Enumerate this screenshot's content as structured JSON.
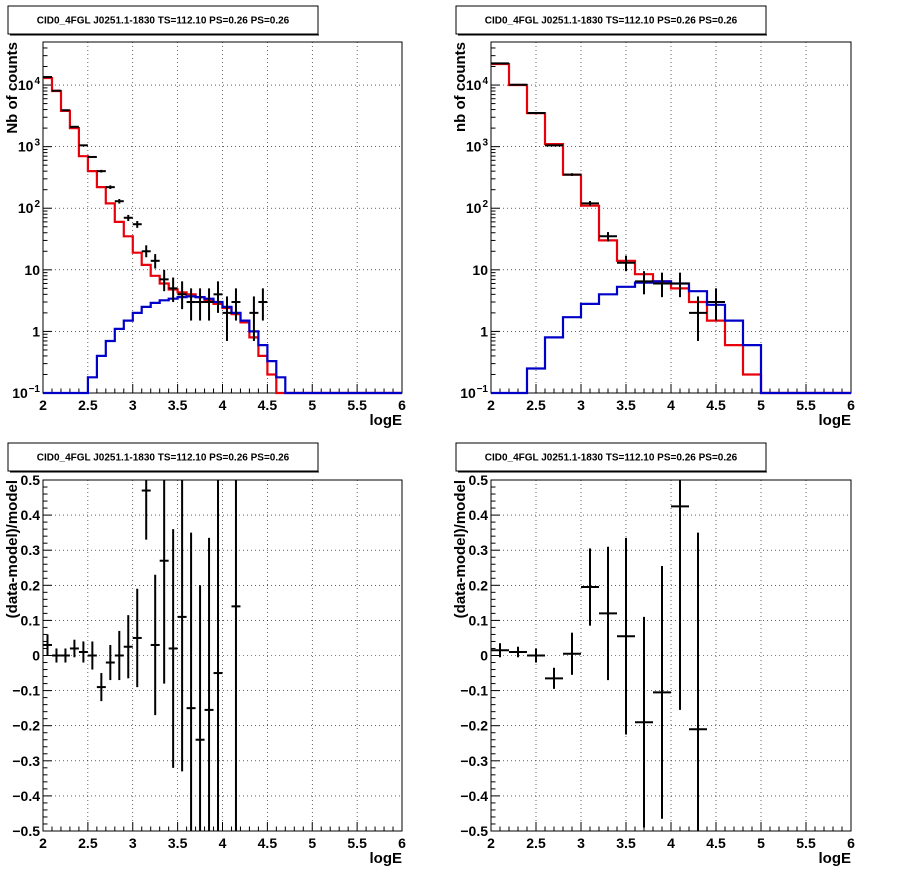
{
  "chart_data": [
    {
      "type": "line",
      "title": "CID0_4FGL J0251.1-1830 TS=112.10 PS=0.26 PS=0.26",
      "xlabel": "logE",
      "ylabel": "Nb of counts",
      "yscale": "log",
      "xlim": [
        2,
        6
      ],
      "ylim": [
        0.1,
        50000
      ],
      "grid": true,
      "xticks": [
        "2",
        "2.5",
        "3",
        "3.5",
        "4",
        "4.5",
        "5",
        "5.5",
        "6"
      ],
      "yticks": [
        {
          "value": 0.1,
          "base": "10",
          "exp": "−1"
        },
        {
          "value": 1,
          "label": "1"
        },
        {
          "value": 10,
          "label": "10"
        },
        {
          "value": 100,
          "base": "10",
          "exp": "2"
        },
        {
          "value": 1000,
          "base": "10",
          "exp": "3"
        },
        {
          "value": 10000,
          "base": "10",
          "exp": "4"
        }
      ],
      "binning": {
        "start": 2.0,
        "width": 0.1
      },
      "series": [
        {
          "color": "#e8000b",
          "values": [
            13000,
            8000,
            3800,
            2000,
            700,
            400,
            220,
            120,
            60,
            35,
            19,
            12,
            8,
            6,
            4.8,
            4.3,
            4,
            3.6,
            3.2,
            2.8,
            2.4,
            1.9,
            1.4,
            0.8,
            0.4,
            0.2,
            0.1,
            0.1,
            0.1,
            0.1,
            0.1,
            0.1,
            0.1,
            0.1,
            0.1,
            0.1,
            0.1,
            0.1,
            0.1,
            0.1
          ]
        },
        {
          "color": "#0000c8",
          "values": [
            0.1,
            0.1,
            0.1,
            0.1,
            0.1,
            0.18,
            0.4,
            0.7,
            1.1,
            1.5,
            2,
            2.5,
            2.9,
            3.2,
            3.4,
            3.6,
            3.7,
            3.6,
            3.4,
            3,
            2.5,
            2,
            1.5,
            1,
            0.6,
            0.33,
            0.18,
            0.1,
            0.1,
            0.1,
            0.1,
            0.1,
            0.1,
            0.1,
            0.1,
            0.1,
            0.1,
            0.1,
            0.1,
            0.1
          ]
        }
      ],
      "points": [
        {
          "x": 2.05,
          "y": 13500,
          "lo": 13300,
          "hi": 13700
        },
        {
          "x": 2.15,
          "y": 8100,
          "lo": 7950,
          "hi": 8250
        },
        {
          "x": 2.25,
          "y": 3900,
          "lo": 3820,
          "hi": 3980
        },
        {
          "x": 2.35,
          "y": 2100,
          "lo": 2050,
          "hi": 2150
        },
        {
          "x": 2.45,
          "y": 1050,
          "lo": 1020,
          "hi": 1080
        },
        {
          "x": 2.55,
          "y": 680,
          "lo": 655,
          "hi": 705
        },
        {
          "x": 2.65,
          "y": 400,
          "lo": 380,
          "hi": 420
        },
        {
          "x": 2.75,
          "y": 220,
          "lo": 205,
          "hi": 235
        },
        {
          "x": 2.85,
          "y": 130,
          "lo": 119,
          "hi": 141
        },
        {
          "x": 2.95,
          "y": 70,
          "lo": 62,
          "hi": 78
        },
        {
          "x": 3.05,
          "y": 55,
          "lo": 48,
          "hi": 62
        },
        {
          "x": 3.15,
          "y": 20,
          "lo": 16,
          "hi": 25
        },
        {
          "x": 3.25,
          "y": 14,
          "lo": 10.5,
          "hi": 18
        },
        {
          "x": 3.35,
          "y": 7,
          "lo": 4.5,
          "hi": 10
        },
        {
          "x": 3.45,
          "y": 5,
          "lo": 3,
          "hi": 7.5
        },
        {
          "x": 3.55,
          "y": 4,
          "lo": 2.3,
          "hi": 6.5
        },
        {
          "x": 3.65,
          "y": 3,
          "lo": 1.5,
          "hi": 5
        },
        {
          "x": 3.75,
          "y": 3,
          "lo": 1.5,
          "hi": 5
        },
        {
          "x": 3.85,
          "y": 3,
          "lo": 1.5,
          "hi": 5
        },
        {
          "x": 3.95,
          "y": 4,
          "lo": 2,
          "hi": 6.5
        },
        {
          "x": 4.05,
          "y": 2,
          "lo": 0.7,
          "hi": 3.7
        },
        {
          "x": 4.15,
          "y": 3,
          "lo": 1.5,
          "hi": 5
        },
        {
          "x": 4.35,
          "y": 2,
          "lo": 0.7,
          "hi": 3.7
        },
        {
          "x": 4.45,
          "y": 3,
          "lo": 1.5,
          "hi": 5
        }
      ]
    },
    {
      "type": "line",
      "title": "CID0_4FGL J0251.1-1830 TS=112.10 PS=0.26 PS=0.26",
      "xlabel": "logE",
      "ylabel": "nb of counts",
      "yscale": "log",
      "xlim": [
        2,
        6
      ],
      "ylim": [
        0.1,
        50000
      ],
      "grid": true,
      "xticks": [
        "2",
        "2.5",
        "3",
        "3.5",
        "4",
        "4.5",
        "5",
        "5.5",
        "6"
      ],
      "yticks": [
        {
          "value": 0.1,
          "base": "10",
          "exp": "−1"
        },
        {
          "value": 1,
          "label": "1"
        },
        {
          "value": 10,
          "label": "10"
        },
        {
          "value": 100,
          "base": "10",
          "exp": "2"
        },
        {
          "value": 1000,
          "base": "10",
          "exp": "3"
        },
        {
          "value": 10000,
          "base": "10",
          "exp": "4"
        }
      ],
      "binning": {
        "start": 2.0,
        "width": 0.2
      },
      "series": [
        {
          "color": "#e8000b",
          "values": [
            22000,
            10000,
            3500,
            1100,
            350,
            110,
            30,
            14,
            8.5,
            6.5,
            5,
            3,
            1.5,
            0.6,
            0.2,
            0.1,
            0.1,
            0.1,
            0.1,
            0.1
          ]
        },
        {
          "color": "#0000c8",
          "values": [
            0.1,
            0.1,
            0.25,
            0.8,
            1.7,
            2.8,
            4,
            5.3,
            6.2,
            6.5,
            6,
            4.5,
            2.7,
            1.5,
            0.6,
            0.1,
            0.1,
            0.1,
            0.1,
            0.1
          ]
        }
      ],
      "points": [
        {
          "x": 2.1,
          "y": 22500,
          "lo": 22300,
          "hi": 22700
        },
        {
          "x": 2.3,
          "y": 10100,
          "lo": 9950,
          "hi": 10250
        },
        {
          "x": 2.5,
          "y": 3520,
          "lo": 3460,
          "hi": 3580
        },
        {
          "x": 2.7,
          "y": 1050,
          "lo": 1020,
          "hi": 1080
        },
        {
          "x": 2.9,
          "y": 352,
          "lo": 335,
          "hi": 370
        },
        {
          "x": 3.1,
          "y": 120,
          "lo": 110,
          "hi": 131
        },
        {
          "x": 3.3,
          "y": 35,
          "lo": 29,
          "hi": 41
        },
        {
          "x": 3.5,
          "y": 13,
          "lo": 9.5,
          "hi": 17
        },
        {
          "x": 3.7,
          "y": 6.5,
          "lo": 4,
          "hi": 9.5
        },
        {
          "x": 3.9,
          "y": 6,
          "lo": 3.6,
          "hi": 9
        },
        {
          "x": 4.1,
          "y": 6,
          "lo": 3.6,
          "hi": 9
        },
        {
          "x": 4.3,
          "y": 2,
          "lo": 0.7,
          "hi": 3.7
        },
        {
          "x": 4.5,
          "y": 3,
          "lo": 1.5,
          "hi": 5
        }
      ]
    },
    {
      "type": "scatter",
      "title": "CID0_4FGL J0251.1-1830 TS=112.10 PS=0.26 PS=0.26",
      "xlabel": "logE",
      "ylabel": "(data-model)/model",
      "xlim": [
        2,
        6
      ],
      "ylim": [
        -0.5,
        0.5
      ],
      "grid": true,
      "xticks": [
        "2",
        "2.5",
        "3",
        "3.5",
        "4",
        "4.5",
        "5",
        "5.5",
        "6"
      ],
      "yticks": [
        "−0.5",
        "−0.4",
        "−0.3",
        "−0.2",
        "−0.1",
        "0",
        "0.1",
        "0.2",
        "0.3",
        "0.4",
        "0.5"
      ],
      "xerr": 0.05,
      "points": [
        {
          "x": 2.05,
          "y": 0.03,
          "err": 0.03
        },
        {
          "x": 2.15,
          "y": 0.0,
          "err": 0.02
        },
        {
          "x": 2.25,
          "y": 0.0,
          "err": 0.02
        },
        {
          "x": 2.35,
          "y": 0.02,
          "err": 0.025
        },
        {
          "x": 2.45,
          "y": 0.01,
          "err": 0.03
        },
        {
          "x": 2.55,
          "y": 0.0,
          "err": 0.04
        },
        {
          "x": 2.65,
          "y": -0.09,
          "err": 0.04
        },
        {
          "x": 2.75,
          "y": -0.02,
          "err": 0.05
        },
        {
          "x": 2.85,
          "y": 0.0,
          "err": 0.07
        },
        {
          "x": 2.95,
          "y": 0.025,
          "err": 0.09
        },
        {
          "x": 3.05,
          "y": 0.05,
          "err": 0.14
        },
        {
          "x": 3.15,
          "y": 0.47,
          "err": 0.14
        },
        {
          "x": 3.25,
          "y": 0.03,
          "err": 0.2
        },
        {
          "x": 3.35,
          "y": 0.27,
          "err": 0.35
        },
        {
          "x": 3.45,
          "y": 0.02,
          "err": 0.34
        },
        {
          "x": 3.55,
          "y": 0.11,
          "err": 0.44
        },
        {
          "x": 3.65,
          "y": -0.15,
          "err": 0.5
        },
        {
          "x": 3.75,
          "y": -0.24,
          "err": 0.44
        },
        {
          "x": 3.85,
          "y": -0.155,
          "err": 0.49
        },
        {
          "x": 3.95,
          "y": -0.05,
          "err": 0.6
        },
        {
          "x": 4.15,
          "y": 0.14,
          "err": 0.7
        }
      ]
    },
    {
      "type": "scatter",
      "title": "CID0_4FGL J0251.1-1830 TS=112.10 PS=0.26 PS=0.26",
      "xlabel": "logE",
      "ylabel": "(data-model)/model",
      "xlim": [
        2,
        6
      ],
      "ylim": [
        -0.5,
        0.5
      ],
      "grid": true,
      "xticks": [
        "2",
        "2.5",
        "3",
        "3.5",
        "4",
        "4.5",
        "5",
        "5.5",
        "6"
      ],
      "yticks": [
        "−0.5",
        "−0.4",
        "−0.3",
        "−0.2",
        "−0.1",
        "0",
        "0.1",
        "0.2",
        "0.3",
        "0.4",
        "0.5"
      ],
      "xerr": 0.1,
      "points": [
        {
          "x": 2.1,
          "y": 0.015,
          "err": 0.02
        },
        {
          "x": 2.3,
          "y": 0.01,
          "err": 0.015
        },
        {
          "x": 2.5,
          "y": 0.0,
          "err": 0.02
        },
        {
          "x": 2.7,
          "y": -0.065,
          "err": 0.03
        },
        {
          "x": 2.9,
          "y": 0.005,
          "err": 0.06
        },
        {
          "x": 3.1,
          "y": 0.195,
          "err": 0.11
        },
        {
          "x": 3.3,
          "y": 0.12,
          "err": 0.19
        },
        {
          "x": 3.5,
          "y": 0.055,
          "err": 0.28
        },
        {
          "x": 3.7,
          "y": -0.19,
          "err": 0.3
        },
        {
          "x": 3.9,
          "y": -0.105,
          "err": 0.36
        },
        {
          "x": 4.1,
          "y": 0.425,
          "err": 0.58
        },
        {
          "x": 4.3,
          "y": -0.21,
          "err": 0.56
        }
      ]
    }
  ]
}
